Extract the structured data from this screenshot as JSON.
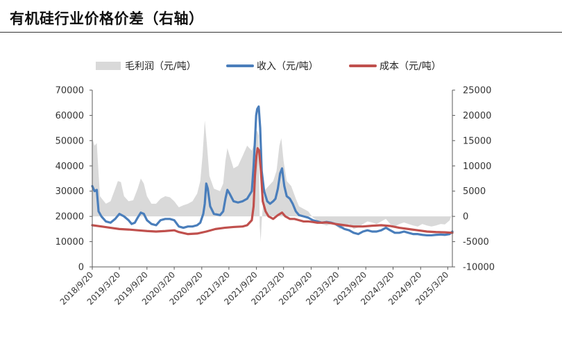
{
  "title": "有机硅行业价格价差（右轴）",
  "chart_data": {
    "type": "line",
    "legend": {
      "placement": "top",
      "items": [
        {
          "label": "毛利润（元/吨）",
          "kind": "area",
          "color": "#d9d9d9"
        },
        {
          "label": "收入（元/吨）",
          "kind": "line",
          "color": "#4a7ebb"
        },
        {
          "label": "成本（元/吨）",
          "kind": "line",
          "color": "#c0504d"
        }
      ]
    },
    "x_ticks": [
      "2018/9/20",
      "2019/3/20",
      "2019/9/20",
      "2020/3/20",
      "2020/9/20",
      "2021/3/20",
      "2021/9/20",
      "2022/3/20",
      "2022/9/20",
      "2023/3/20",
      "2023/9/20",
      "2024/3/20",
      "2024/9/20",
      "2025/3/20"
    ],
    "left_axis": {
      "range": [
        0,
        70000
      ],
      "ticks": [
        "0",
        "10000",
        "20000",
        "30000",
        "40000",
        "50000",
        "60000",
        "70000"
      ]
    },
    "right_axis": {
      "range": [
        -10000,
        25000
      ],
      "ticks": [
        "-10000",
        "-5000",
        "0",
        "5000",
        "10000",
        "15000",
        "20000",
        "25000"
      ]
    },
    "grid": false,
    "x_range": [
      "2018/9/20",
      "2025/4/20"
    ],
    "series": [
      {
        "name": "收入（元/吨）",
        "axis": "left",
        "style": "line",
        "color": "#4a7ebb",
        "points": [
          [
            "2018/9/20",
            32000
          ],
          [
            "2018/10/5",
            30000
          ],
          [
            "2018/10/20",
            30500
          ],
          [
            "2018/11/1",
            22000
          ],
          [
            "2018/11/20",
            20000
          ],
          [
            "2018/12/20",
            18000
          ],
          [
            "2019/1/20",
            17500
          ],
          [
            "2019/2/20",
            19000
          ],
          [
            "2019/3/20",
            21000
          ],
          [
            "2019/4/20",
            20000
          ],
          [
            "2019/5/20",
            18500
          ],
          [
            "2019/6/10",
            17000
          ],
          [
            "2019/7/1",
            17500
          ],
          [
            "2019/7/20",
            19500
          ],
          [
            "2019/8/10",
            21500
          ],
          [
            "2019/8/30",
            21000
          ],
          [
            "2019/9/20",
            18500
          ],
          [
            "2019/10/20",
            17000
          ],
          [
            "2019/11/20",
            16500
          ],
          [
            "2019/12/20",
            18500
          ],
          [
            "2020/1/20",
            19000
          ],
          [
            "2020/2/20",
            19000
          ],
          [
            "2020/3/20",
            18500
          ],
          [
            "2020/4/20",
            16000
          ],
          [
            "2020/5/20",
            15500
          ],
          [
            "2020/6/20",
            16000
          ],
          [
            "2020/7/20",
            16000
          ],
          [
            "2020/8/20",
            16500
          ],
          [
            "2020/9/10",
            17500
          ],
          [
            "2020/9/30",
            21000
          ],
          [
            "2020/10/10",
            25000
          ],
          [
            "2020/10/20",
            33000
          ],
          [
            "2020/10/30",
            31000
          ],
          [
            "2020/11/15",
            24000
          ],
          [
            "2020/12/10",
            21000
          ],
          [
            "2021/1/20",
            20500
          ],
          [
            "2021/2/10",
            22000
          ],
          [
            "2021/2/25",
            27000
          ],
          [
            "2021/3/10",
            30500
          ],
          [
            "2021/3/25",
            29000
          ],
          [
            "2021/4/20",
            26000
          ],
          [
            "2021/5/20",
            25500
          ],
          [
            "2021/6/20",
            26000
          ],
          [
            "2021/7/20",
            27000
          ],
          [
            "2021/8/20",
            30000
          ],
          [
            "2021/9/1",
            40000
          ],
          [
            "2021/9/10",
            50000
          ],
          [
            "2021/9/18",
            60000
          ],
          [
            "2021/9/25",
            62500
          ],
          [
            "2021/10/5",
            63500
          ],
          [
            "2021/10/15",
            55000
          ],
          [
            "2021/10/25",
            38000
          ],
          [
            "2021/11/10",
            30000
          ],
          [
            "2021/12/1",
            26000
          ],
          [
            "2021/12/20",
            25000
          ],
          [
            "2022/1/10",
            26000
          ],
          [
            "2022/1/25",
            27000
          ],
          [
            "2022/2/10",
            31000
          ],
          [
            "2022/2/25",
            37000
          ],
          [
            "2022/3/10",
            39000
          ],
          [
            "2022/3/25",
            32000
          ],
          [
            "2022/4/10",
            28000
          ],
          [
            "2022/5/1",
            27000
          ],
          [
            "2022/5/20",
            25000
          ],
          [
            "2022/6/10",
            22000
          ],
          [
            "2022/7/1",
            20500
          ],
          [
            "2022/8/1",
            20000
          ],
          [
            "2022/9/1",
            19500
          ],
          [
            "2022/10/1",
            18500
          ],
          [
            "2022/11/1",
            18000
          ],
          [
            "2022/12/1",
            17500
          ],
          [
            "2023/1/1",
            17800
          ],
          [
            "2023/2/1",
            17500
          ],
          [
            "2023/3/1",
            17000
          ],
          [
            "2023/4/1",
            16000
          ],
          [
            "2023/5/1",
            15000
          ],
          [
            "2023/6/1",
            14500
          ],
          [
            "2023/7/1",
            13500
          ],
          [
            "2023/8/1",
            13000
          ],
          [
            "2023/9/1",
            14000
          ],
          [
            "2023/10/1",
            14500
          ],
          [
            "2023/11/1",
            14000
          ],
          [
            "2023/12/1",
            14000
          ],
          [
            "2024/1/1",
            14500
          ],
          [
            "2024/2/1",
            15500
          ],
          [
            "2024/3/1",
            14500
          ],
          [
            "2024/4/1",
            13500
          ],
          [
            "2024/5/1",
            13500
          ],
          [
            "2024/6/1",
            14000
          ],
          [
            "2024/7/1",
            13500
          ],
          [
            "2024/8/1",
            13000
          ],
          [
            "2024/9/1",
            13000
          ],
          [
            "2024/10/1",
            12700
          ],
          [
            "2024/11/1",
            12500
          ],
          [
            "2024/12/1",
            12500
          ],
          [
            "2025/1/1",
            12700
          ],
          [
            "2025/2/1",
            12800
          ],
          [
            "2025/3/1",
            12700
          ],
          [
            "2025/4/1",
            13000
          ],
          [
            "2025/4/20",
            14000
          ]
        ]
      },
      {
        "name": "成本（元/吨）",
        "axis": "left",
        "style": "line",
        "color": "#c0504d",
        "points": [
          [
            "2018/9/20",
            16500
          ],
          [
            "2018/11/20",
            16000
          ],
          [
            "2019/1/20",
            15500
          ],
          [
            "2019/3/20",
            15000
          ],
          [
            "2019/5/20",
            14800
          ],
          [
            "2019/7/20",
            14500
          ],
          [
            "2019/9/20",
            14200
          ],
          [
            "2019/11/20",
            14000
          ],
          [
            "2020/1/20",
            14200
          ],
          [
            "2020/3/20",
            14500
          ],
          [
            "2020/4/20",
            13800
          ],
          [
            "2020/6/20",
            13000
          ],
          [
            "2020/8/20",
            13200
          ],
          [
            "2020/10/20",
            14000
          ],
          [
            "2020/12/20",
            15000
          ],
          [
            "2021/2/20",
            15500
          ],
          [
            "2021/4/20",
            15800
          ],
          [
            "2021/6/20",
            16000
          ],
          [
            "2021/7/20",
            16500
          ],
          [
            "2021/8/20",
            18500
          ],
          [
            "2021/9/1",
            24000
          ],
          [
            "2021/9/10",
            36000
          ],
          [
            "2021/9/20",
            44000
          ],
          [
            "2021/9/28",
            47000
          ],
          [
            "2021/10/8",
            46000
          ],
          [
            "2021/10/20",
            38000
          ],
          [
            "2021/11/1",
            26000
          ],
          [
            "2021/11/20",
            22000
          ],
          [
            "2021/12/10",
            20000
          ],
          [
            "2022/1/10",
            19000
          ],
          [
            "2022/2/10",
            20500
          ],
          [
            "2022/3/10",
            21500
          ],
          [
            "2022/4/1",
            20000
          ],
          [
            "2022/5/1",
            19000
          ],
          [
            "2022/6/1",
            19000
          ],
          [
            "2022/7/1",
            18500
          ],
          [
            "2022/8/1",
            18000
          ],
          [
            "2022/9/1",
            18000
          ],
          [
            "2022/10/1",
            17800
          ],
          [
            "2022/11/1",
            17500
          ],
          [
            "2022/12/1",
            17500
          ],
          [
            "2023/1/1",
            17600
          ],
          [
            "2023/2/1",
            17300
          ],
          [
            "2023/3/1",
            17000
          ],
          [
            "2023/5/1",
            16500
          ],
          [
            "2023/7/1",
            16000
          ],
          [
            "2023/9/1",
            16000
          ],
          [
            "2023/11/1",
            16300
          ],
          [
            "2024/1/1",
            16500
          ],
          [
            "2024/3/1",
            16200
          ],
          [
            "2024/5/1",
            15500
          ],
          [
            "2024/7/1",
            15000
          ],
          [
            "2024/9/1",
            14500
          ],
          [
            "2024/11/1",
            14000
          ],
          [
            "2025/1/1",
            13800
          ],
          [
            "2025/3/1",
            13700
          ],
          [
            "2025/4/20",
            13500
          ]
        ]
      },
      {
        "name": "毛利润（元/吨）",
        "axis": "right",
        "style": "area",
        "color": "#d9d9d9",
        "points": [
          [
            "2018/9/20",
            15500
          ],
          [
            "2018/10/5",
            14000
          ],
          [
            "2018/10/20",
            14500
          ],
          [
            "2018/11/10",
            4000
          ],
          [
            "2018/12/20",
            2500
          ],
          [
            "2019/1/20",
            3000
          ],
          [
            "2019/2/20",
            5500
          ],
          [
            "2019/3/10",
            7000
          ],
          [
            "2019/3/30",
            6800
          ],
          [
            "2019/4/20",
            4000
          ],
          [
            "2019/5/20",
            3000
          ],
          [
            "2019/6/20",
            3200
          ],
          [
            "2019/7/20",
            5500
          ],
          [
            "2019/8/10",
            7500
          ],
          [
            "2019/8/30",
            6500
          ],
          [
            "2019/9/20",
            4000
          ],
          [
            "2019/10/20",
            2500
          ],
          [
            "2019/11/20",
            2500
          ],
          [
            "2019/12/20",
            3500
          ],
          [
            "2020/1/20",
            4000
          ],
          [
            "2020/2/20",
            3800
          ],
          [
            "2020/3/20",
            3000
          ],
          [
            "2020/4/20",
            1800
          ],
          [
            "2020/5/20",
            2200
          ],
          [
            "2020/6/20",
            2500
          ],
          [
            "2020/7/20",
            3000
          ],
          [
            "2020/8/20",
            4500
          ],
          [
            "2020/9/10",
            7000
          ],
          [
            "2020/9/25",
            12000
          ],
          [
            "2020/10/10",
            19000
          ],
          [
            "2020/10/25",
            14000
          ],
          [
            "2020/11/10",
            8000
          ],
          [
            "2020/12/10",
            5500
          ],
          [
            "2021/1/20",
            5000
          ],
          [
            "2021/2/10",
            6500
          ],
          [
            "2021/2/25",
            11000
          ],
          [
            "2021/3/10",
            13500
          ],
          [
            "2021/3/25",
            12000
          ],
          [
            "2021/4/20",
            9500
          ],
          [
            "2021/5/20",
            10000
          ],
          [
            "2021/6/20",
            12000
          ],
          [
            "2021/7/20",
            14000
          ],
          [
            "2021/8/20",
            13000
          ],
          [
            "2021/9/1",
            14000
          ],
          [
            "2021/9/15",
            16500
          ],
          [
            "2021/9/25",
            17000
          ],
          [
            "2021/10/5",
            16000
          ],
          [
            "2021/10/12",
            -2000
          ],
          [
            "2021/10/18",
            -5000
          ],
          [
            "2021/10/25",
            -1000
          ],
          [
            "2021/11/10",
            5000
          ],
          [
            "2021/12/10",
            6000
          ],
          [
            "2022/1/10",
            7000
          ],
          [
            "2022/2/1",
            9000
          ],
          [
            "2022/2/20",
            14000
          ],
          [
            "2022/3/5",
            15500
          ],
          [
            "2022/3/20",
            11000
          ],
          [
            "2022/4/10",
            7000
          ],
          [
            "2022/5/10",
            6000
          ],
          [
            "2022/6/10",
            3500
          ],
          [
            "2022/7/1",
            2000
          ],
          [
            "2022/8/1",
            1500
          ],
          [
            "2022/9/1",
            1000
          ],
          [
            "2022/10/1",
            -200
          ],
          [
            "2022/11/1",
            -800
          ],
          [
            "2022/12/1",
            -1500
          ],
          [
            "2023/1/1",
            -1800
          ],
          [
            "2023/2/1",
            -1500
          ],
          [
            "2023/3/1",
            -1800
          ],
          [
            "2023/4/1",
            -2500
          ],
          [
            "2023/5/1",
            -2000
          ],
          [
            "2023/6/1",
            -1500
          ],
          [
            "2023/7/1",
            -2500
          ],
          [
            "2023/8/1",
            -2200
          ],
          [
            "2023/9/1",
            -1500
          ],
          [
            "2023/10/1",
            -1000
          ],
          [
            "2023/11/1",
            -1200
          ],
          [
            "2023/12/1",
            -1500
          ],
          [
            "2024/1/1",
            -1000
          ],
          [
            "2024/2/1",
            -500
          ],
          [
            "2024/3/1",
            -1500
          ],
          [
            "2024/4/1",
            -2000
          ],
          [
            "2024/5/1",
            -1500
          ],
          [
            "2024/6/1",
            -1200
          ],
          [
            "2024/7/1",
            -1500
          ],
          [
            "2024/8/1",
            -1800
          ],
          [
            "2024/9/1",
            -2000
          ],
          [
            "2024/10/1",
            -1500
          ],
          [
            "2024/11/1",
            -1800
          ],
          [
            "2024/12/1",
            -2000
          ],
          [
            "2025/1/1",
            -1800
          ],
          [
            "2025/2/1",
            -1500
          ],
          [
            "2025/3/1",
            -1600
          ],
          [
            "2025/4/1",
            -800
          ],
          [
            "2025/4/20",
            500
          ]
        ]
      }
    ]
  }
}
